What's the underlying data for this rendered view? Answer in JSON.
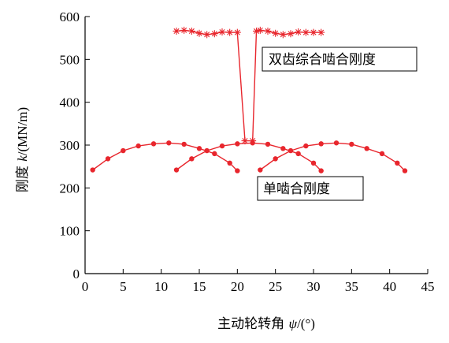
{
  "chart_data": {
    "type": "line",
    "title": "",
    "xlabel": {
      "prefix": "主动轮转角 ",
      "symbol": "ψ",
      "unit": "/(°)"
    },
    "ylabel": {
      "prefix": "刚度 ",
      "symbol": "k",
      "unit": "/(MN/m)"
    },
    "xlim": [
      0,
      45
    ],
    "ylim": [
      0,
      600
    ],
    "xticks": [
      0,
      5,
      10,
      15,
      20,
      25,
      30,
      35,
      40,
      45
    ],
    "yticks": [
      0,
      100,
      200,
      300,
      400,
      500,
      600
    ],
    "grid": false,
    "line_color": "#e8262d",
    "annotations": [
      {
        "text": "双齿综合啮合刚度"
      },
      {
        "text": "单啮合刚度"
      }
    ],
    "series": [
      {
        "marker": "dot",
        "x": [
          1,
          3,
          5,
          7,
          9,
          11,
          13,
          15,
          17,
          19,
          20
        ],
        "y": [
          242,
          268,
          287,
          298,
          303,
          305,
          302,
          292,
          280,
          258,
          240
        ]
      },
      {
        "marker": "dot",
        "x": [
          12,
          14,
          16,
          18,
          20,
          22,
          24,
          26,
          28,
          30,
          31
        ],
        "y": [
          242,
          268,
          287,
          298,
          303,
          305,
          302,
          292,
          280,
          258,
          240
        ]
      },
      {
        "marker": "dot",
        "x": [
          23,
          25,
          27,
          29,
          31,
          33,
          35,
          37,
          39,
          41,
          42
        ],
        "y": [
          242,
          268,
          287,
          298,
          303,
          305,
          302,
          292,
          280,
          258,
          240
        ]
      },
      {
        "marker": "star",
        "x": [
          12,
          13,
          14,
          15,
          16,
          17,
          18,
          19,
          20,
          21,
          22,
          22.5,
          23,
          24,
          25,
          26,
          27,
          28,
          29,
          30,
          31
        ],
        "y": [
          566,
          568,
          566,
          561,
          558,
          560,
          564,
          563,
          563,
          310,
          310,
          566,
          568,
          566,
          561,
          558,
          560,
          564,
          563,
          563,
          563
        ]
      }
    ]
  }
}
